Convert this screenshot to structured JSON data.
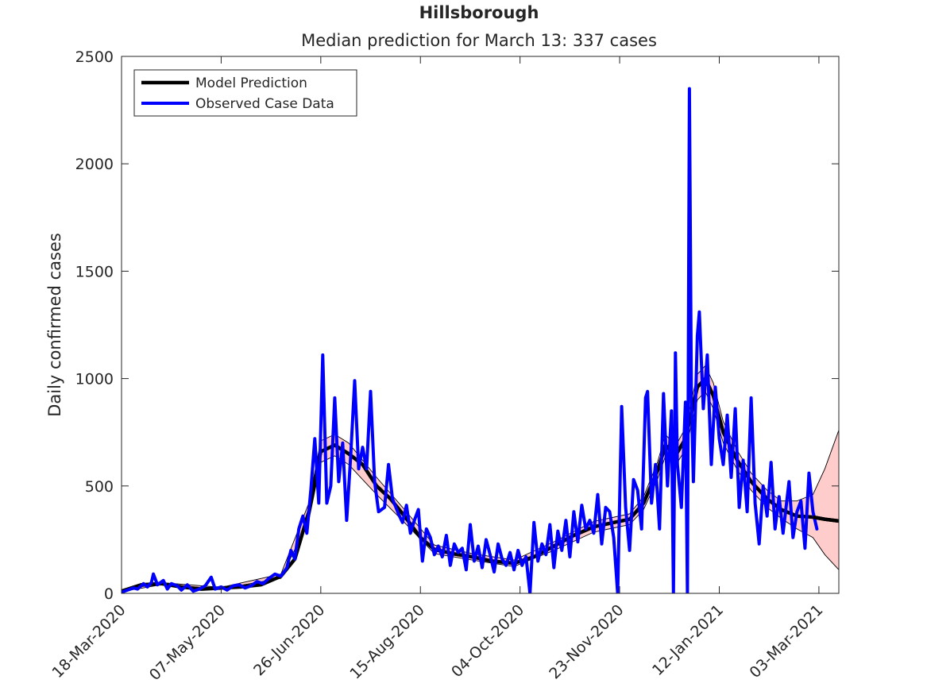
{
  "chart_data": {
    "type": "line",
    "title": "Hillsborough",
    "subtitle": "Median prediction for March 13: 337 cases",
    "xlabel": "",
    "ylabel": "Daily confirmed cases",
    "xlim": [
      "2020-03-18",
      "2021-03-13"
    ],
    "ylim": [
      0,
      2500
    ],
    "x_ticks": [
      "18-Mar-2020",
      "07-May-2020",
      "26-Jun-2020",
      "15-Aug-2020",
      "04-Oct-2020",
      "23-Nov-2020",
      "12-Jan-2021",
      "03-Mar-2021"
    ],
    "y_ticks": [
      0,
      500,
      1000,
      1500,
      2000,
      2500
    ],
    "grid": false,
    "legend_position": "top-left",
    "series": [
      {
        "name": "Model Prediction",
        "color": "#000000",
        "points": [
          [
            "2020-03-18",
            10
          ],
          [
            "2020-03-28",
            40
          ],
          [
            "2020-04-07",
            45
          ],
          [
            "2020-04-17",
            30
          ],
          [
            "2020-04-27",
            20
          ],
          [
            "2020-05-07",
            25
          ],
          [
            "2020-05-17",
            30
          ],
          [
            "2020-05-27",
            40
          ],
          [
            "2020-06-06",
            80
          ],
          [
            "2020-06-13",
            160
          ],
          [
            "2020-06-20",
            380
          ],
          [
            "2020-06-26",
            660
          ],
          [
            "2020-07-03",
            690
          ],
          [
            "2020-07-10",
            650
          ],
          [
            "2020-07-17",
            600
          ],
          [
            "2020-07-24",
            500
          ],
          [
            "2020-07-31",
            440
          ],
          [
            "2020-08-07",
            360
          ],
          [
            "2020-08-15",
            260
          ],
          [
            "2020-08-22",
            205
          ],
          [
            "2020-08-31",
            185
          ],
          [
            "2020-09-10",
            170
          ],
          [
            "2020-09-20",
            150
          ],
          [
            "2020-10-01",
            140
          ],
          [
            "2020-10-11",
            170
          ],
          [
            "2020-10-21",
            220
          ],
          [
            "2020-10-31",
            270
          ],
          [
            "2020-11-10",
            310
          ],
          [
            "2020-11-20",
            330
          ],
          [
            "2020-11-28",
            345
          ],
          [
            "2020-12-05",
            420
          ],
          [
            "2020-12-12",
            570
          ],
          [
            "2020-12-16",
            690
          ],
          [
            "2020-12-21",
            640
          ],
          [
            "2020-12-26",
            720
          ],
          [
            "2021-01-01",
            960
          ],
          [
            "2021-01-05",
            1000
          ],
          [
            "2021-01-09",
            920
          ],
          [
            "2021-01-14",
            750
          ],
          [
            "2021-01-21",
            620
          ],
          [
            "2021-01-28",
            520
          ],
          [
            "2021-02-05",
            440
          ],
          [
            "2021-02-12",
            390
          ],
          [
            "2021-02-20",
            360
          ],
          [
            "2021-02-28",
            355
          ],
          [
            "2021-03-06",
            345
          ],
          [
            "2021-03-13",
            337
          ]
        ]
      },
      {
        "name": "Observed Case Data",
        "color": "#0000ff",
        "points": [
          [
            "2020-03-18",
            5
          ],
          [
            "2020-03-21",
            15
          ],
          [
            "2020-03-24",
            25
          ],
          [
            "2020-03-26",
            20
          ],
          [
            "2020-03-29",
            45
          ],
          [
            "2020-03-31",
            30
          ],
          [
            "2020-04-02",
            50
          ],
          [
            "2020-04-03",
            90
          ],
          [
            "2020-04-05",
            40
          ],
          [
            "2020-04-08",
            60
          ],
          [
            "2020-04-10",
            20
          ],
          [
            "2020-04-12",
            45
          ],
          [
            "2020-04-15",
            35
          ],
          [
            "2020-04-17",
            15
          ],
          [
            "2020-04-20",
            40
          ],
          [
            "2020-04-23",
            10
          ],
          [
            "2020-04-26",
            20
          ],
          [
            "2020-04-29",
            35
          ],
          [
            "2020-05-02",
            75
          ],
          [
            "2020-05-04",
            20
          ],
          [
            "2020-05-07",
            30
          ],
          [
            "2020-05-10",
            15
          ],
          [
            "2020-05-13",
            35
          ],
          [
            "2020-05-16",
            40
          ],
          [
            "2020-05-19",
            25
          ],
          [
            "2020-05-22",
            35
          ],
          [
            "2020-05-25",
            55
          ],
          [
            "2020-05-28",
            45
          ],
          [
            "2020-05-31",
            70
          ],
          [
            "2020-06-03",
            90
          ],
          [
            "2020-06-06",
            80
          ],
          [
            "2020-06-09",
            120
          ],
          [
            "2020-06-11",
            200
          ],
          [
            "2020-06-13",
            160
          ],
          [
            "2020-06-15",
            300
          ],
          [
            "2020-06-17",
            360
          ],
          [
            "2020-06-19",
            280
          ],
          [
            "2020-06-21",
            480
          ],
          [
            "2020-06-23",
            720
          ],
          [
            "2020-06-25",
            420
          ],
          [
            "2020-06-27",
            1110
          ],
          [
            "2020-06-29",
            420
          ],
          [
            "2020-07-01",
            500
          ],
          [
            "2020-07-03",
            910
          ],
          [
            "2020-07-05",
            520
          ],
          [
            "2020-07-07",
            700
          ],
          [
            "2020-07-09",
            340
          ],
          [
            "2020-07-11",
            640
          ],
          [
            "2020-07-13",
            990
          ],
          [
            "2020-07-15",
            580
          ],
          [
            "2020-07-17",
            680
          ],
          [
            "2020-07-19",
            580
          ],
          [
            "2020-07-21",
            940
          ],
          [
            "2020-07-23",
            520
          ],
          [
            "2020-07-25",
            380
          ],
          [
            "2020-07-28",
            400
          ],
          [
            "2020-07-30",
            600
          ],
          [
            "2020-08-01",
            440
          ],
          [
            "2020-08-04",
            370
          ],
          [
            "2020-08-06",
            330
          ],
          [
            "2020-08-08",
            410
          ],
          [
            "2020-08-10",
            280
          ],
          [
            "2020-08-12",
            340
          ],
          [
            "2020-08-14",
            390
          ],
          [
            "2020-08-16",
            150
          ],
          [
            "2020-08-18",
            300
          ],
          [
            "2020-08-20",
            260
          ],
          [
            "2020-08-22",
            180
          ],
          [
            "2020-08-24",
            220
          ],
          [
            "2020-08-26",
            170
          ],
          [
            "2020-08-28",
            270
          ],
          [
            "2020-08-30",
            130
          ],
          [
            "2020-09-01",
            230
          ],
          [
            "2020-09-03",
            190
          ],
          [
            "2020-09-05",
            210
          ],
          [
            "2020-09-07",
            110
          ],
          [
            "2020-09-09",
            320
          ],
          [
            "2020-09-11",
            150
          ],
          [
            "2020-09-13",
            220
          ],
          [
            "2020-09-15",
            120
          ],
          [
            "2020-09-17",
            250
          ],
          [
            "2020-09-19",
            180
          ],
          [
            "2020-09-21",
            100
          ],
          [
            "2020-09-23",
            230
          ],
          [
            "2020-09-25",
            160
          ],
          [
            "2020-09-27",
            130
          ],
          [
            "2020-09-29",
            190
          ],
          [
            "2020-10-01",
            110
          ],
          [
            "2020-10-03",
            200
          ],
          [
            "2020-10-05",
            130
          ],
          [
            "2020-10-07",
            170
          ],
          [
            "2020-10-09",
            0
          ],
          [
            "2020-10-11",
            330
          ],
          [
            "2020-10-13",
            150
          ],
          [
            "2020-10-15",
            230
          ],
          [
            "2020-10-17",
            180
          ],
          [
            "2020-10-19",
            320
          ],
          [
            "2020-10-21",
            120
          ],
          [
            "2020-10-23",
            290
          ],
          [
            "2020-10-25",
            200
          ],
          [
            "2020-10-27",
            340
          ],
          [
            "2020-10-29",
            170
          ],
          [
            "2020-10-31",
            380
          ],
          [
            "2020-11-02",
            240
          ],
          [
            "2020-11-04",
            410
          ],
          [
            "2020-11-06",
            300
          ],
          [
            "2020-11-08",
            340
          ],
          [
            "2020-11-10",
            280
          ],
          [
            "2020-11-12",
            460
          ],
          [
            "2020-11-14",
            230
          ],
          [
            "2020-11-16",
            400
          ],
          [
            "2020-11-18",
            380
          ],
          [
            "2020-11-20",
            260
          ],
          [
            "2020-11-22",
            0
          ],
          [
            "2020-11-24",
            870
          ],
          [
            "2020-11-26",
            400
          ],
          [
            "2020-11-28",
            200
          ],
          [
            "2020-11-30",
            530
          ],
          [
            "2020-12-02",
            480
          ],
          [
            "2020-12-04",
            300
          ],
          [
            "2020-12-06",
            910
          ],
          [
            "2020-12-07",
            940
          ],
          [
            "2020-12-09",
            420
          ],
          [
            "2020-12-11",
            600
          ],
          [
            "2020-12-13",
            300
          ],
          [
            "2020-12-15",
            930
          ],
          [
            "2020-12-17",
            500
          ],
          [
            "2020-12-19",
            850
          ],
          [
            "2020-12-20",
            0
          ],
          [
            "2020-12-21",
            1120
          ],
          [
            "2020-12-22",
            600
          ],
          [
            "2020-12-24",
            400
          ],
          [
            "2020-12-26",
            890
          ],
          [
            "2020-12-27",
            0
          ],
          [
            "2020-12-28",
            2350
          ],
          [
            "2020-12-29",
            900
          ],
          [
            "2020-12-30",
            520
          ],
          [
            "2021-01-01",
            1200
          ],
          [
            "2021-01-02",
            1310
          ],
          [
            "2021-01-04",
            860
          ],
          [
            "2021-01-06",
            1110
          ],
          [
            "2021-01-08",
            600
          ],
          [
            "2021-01-10",
            960
          ],
          [
            "2021-01-12",
            720
          ],
          [
            "2021-01-14",
            600
          ],
          [
            "2021-01-16",
            830
          ],
          [
            "2021-01-18",
            540
          ],
          [
            "2021-01-20",
            860
          ],
          [
            "2021-01-22",
            400
          ],
          [
            "2021-01-24",
            620
          ],
          [
            "2021-01-26",
            380
          ],
          [
            "2021-01-28",
            910
          ],
          [
            "2021-01-30",
            420
          ],
          [
            "2021-02-01",
            230
          ],
          [
            "2021-02-03",
            500
          ],
          [
            "2021-02-05",
            360
          ],
          [
            "2021-02-07",
            610
          ],
          [
            "2021-02-09",
            300
          ],
          [
            "2021-02-11",
            450
          ],
          [
            "2021-02-13",
            280
          ],
          [
            "2021-02-16",
            520
          ],
          [
            "2021-02-18",
            260
          ],
          [
            "2021-02-20",
            380
          ],
          [
            "2021-02-22",
            430
          ],
          [
            "2021-02-24",
            210
          ],
          [
            "2021-02-26",
            560
          ],
          [
            "2021-02-28",
            380
          ],
          [
            "2021-03-02",
            300
          ]
        ]
      }
    ],
    "prediction_interval": {
      "color": "#ffcccc",
      "points": [
        [
          "2020-03-18",
          8,
          12
        ],
        [
          "2020-04-07",
          40,
          50
        ],
        [
          "2020-05-07",
          22,
          28
        ],
        [
          "2020-06-06",
          70,
          90
        ],
        [
          "2020-06-20",
          340,
          420
        ],
        [
          "2020-06-26",
          610,
          710
        ],
        [
          "2020-07-03",
          640,
          740
        ],
        [
          "2020-07-10",
          600,
          700
        ],
        [
          "2020-07-24",
          460,
          540
        ],
        [
          "2020-08-07",
          330,
          390
        ],
        [
          "2020-08-22",
          185,
          225
        ],
        [
          "2020-09-10",
          155,
          185
        ],
        [
          "2020-10-01",
          125,
          155
        ],
        [
          "2020-10-21",
          200,
          240
        ],
        [
          "2020-11-10",
          285,
          335
        ],
        [
          "2020-11-28",
          320,
          370
        ],
        [
          "2020-12-05",
          390,
          450
        ],
        [
          "2020-12-12",
          530,
          610
        ],
        [
          "2020-12-16",
          640,
          740
        ],
        [
          "2020-12-21",
          595,
          685
        ],
        [
          "2020-12-26",
          670,
          770
        ],
        [
          "2021-01-01",
          900,
          1020
        ],
        [
          "2021-01-05",
          940,
          1060
        ],
        [
          "2021-01-09",
          860,
          980
        ],
        [
          "2021-01-14",
          700,
          800
        ],
        [
          "2021-01-21",
          575,
          665
        ],
        [
          "2021-01-28",
          480,
          560
        ],
        [
          "2021-02-05",
          400,
          480
        ],
        [
          "2021-02-12",
          350,
          430
        ],
        [
          "2021-02-20",
          300,
          430
        ],
        [
          "2021-02-28",
          260,
          460
        ],
        [
          "2021-03-06",
          180,
          580
        ],
        [
          "2021-03-13",
          110,
          760
        ]
      ]
    }
  }
}
